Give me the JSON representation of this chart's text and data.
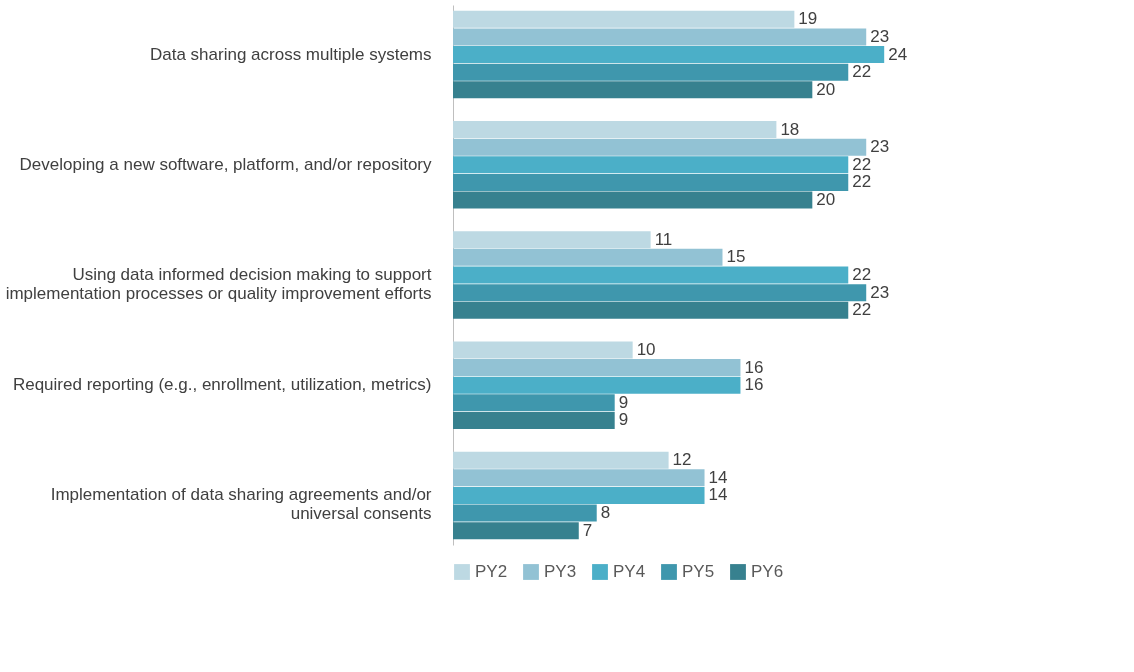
{
  "chart_data": {
    "type": "bar",
    "orientation": "horizontal",
    "data_labels": true,
    "legend": "bottom",
    "categories": [
      "Data sharing across multiple systems",
      "Developing a new software, platform, and/or repository",
      "Using data informed decision making to support\nimplementation processes or quality improvement efforts",
      "Required reporting (e.g., enrollment, utilization, metrics)",
      "Implementation of data sharing agreements and/or\nuniversal consents"
    ],
    "series": [
      {
        "name": "PY2",
        "color": "#bdd9e3",
        "values": [
          19,
          18,
          11,
          10,
          12
        ]
      },
      {
        "name": "PY3",
        "color": "#92c2d4",
        "values": [
          23,
          23,
          15,
          16,
          14
        ]
      },
      {
        "name": "PY4",
        "color": "#4bafc8",
        "values": [
          24,
          22,
          22,
          16,
          14
        ]
      },
      {
        "name": "PY5",
        "color": "#3f97ad",
        "values": [
          22,
          22,
          23,
          9,
          8
        ]
      },
      {
        "name": "PY6",
        "color": "#37818f",
        "values": [
          20,
          20,
          22,
          9,
          7
        ]
      }
    ]
  }
}
